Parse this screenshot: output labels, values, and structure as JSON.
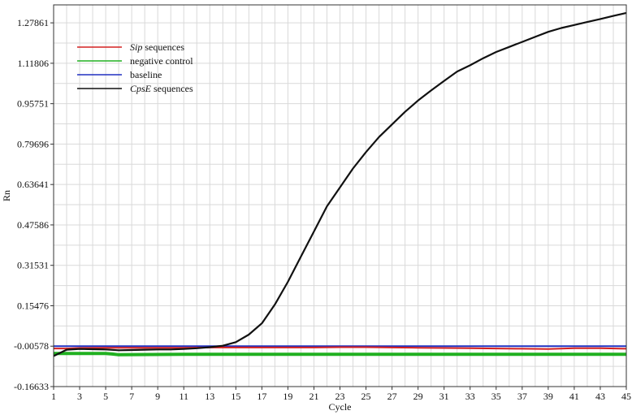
{
  "chart_data": {
    "type": "line",
    "title": "",
    "xlabel": "Cycle",
    "ylabel": "Rn",
    "xlim": [
      1,
      45
    ],
    "ylim": [
      -0.16633,
      1.35
    ],
    "x_ticks": [
      "1",
      "3",
      "5",
      "7",
      "9",
      "11",
      "13",
      "15",
      "17",
      "19",
      "21",
      "23",
      "25",
      "27",
      "29",
      "31",
      "33",
      "35",
      "37",
      "39",
      "41",
      "43",
      "45"
    ],
    "y_ticks": [
      "-0.16633",
      "-0.00578",
      "0.15476",
      "0.31531",
      "0.47586",
      "0.63641",
      "0.79696",
      "0.95751",
      "1.11806",
      "1.27861"
    ],
    "y_tick_values": [
      -0.16633,
      -0.00578,
      0.15476,
      0.31531,
      0.47586,
      0.63641,
      0.79696,
      0.95751,
      1.11806,
      1.27861
    ],
    "grid": true,
    "legend_position": "top-left",
    "series": [
      {
        "name": "Sip",
        "name_suffix": " sequences",
        "color": "#d42020",
        "width": 2,
        "x": [
          1,
          2,
          3,
          5,
          7,
          9,
          11,
          13,
          15,
          17,
          19,
          21,
          23,
          25,
          27,
          29,
          31,
          33,
          35,
          37,
          39,
          41,
          43,
          45
        ],
        "y": [
          -0.015,
          -0.015,
          -0.013,
          -0.012,
          -0.012,
          -0.012,
          -0.012,
          -0.011,
          -0.011,
          -0.011,
          -0.011,
          -0.011,
          -0.01,
          -0.01,
          -0.011,
          -0.012,
          -0.013,
          -0.014,
          -0.015,
          -0.016,
          -0.017,
          -0.014,
          -0.014,
          -0.016
        ]
      },
      {
        "name": "negative control",
        "name_suffix": "",
        "color": "#20b020",
        "width": 4,
        "x": [
          1,
          5,
          5.5,
          6,
          11,
          15,
          20,
          25,
          30,
          35,
          40,
          45
        ],
        "y": [
          -0.035,
          -0.035,
          -0.037,
          -0.04,
          -0.038,
          -0.038,
          -0.038,
          -0.038,
          -0.038,
          -0.038,
          -0.038,
          -0.038
        ]
      },
      {
        "name": "baseline",
        "name_suffix": "",
        "color": "#2030c0",
        "width": 2,
        "x": [
          1,
          45
        ],
        "y": [
          -0.00578,
          -0.00578
        ]
      },
      {
        "name": "CpsE",
        "name_suffix": " sequences",
        "color": "#111111",
        "width": 2.2,
        "x": [
          1,
          2,
          3,
          4,
          5,
          6,
          7,
          8,
          9,
          10,
          11,
          12,
          13,
          14,
          15,
          16,
          17,
          18,
          19,
          20,
          21,
          22,
          23,
          24,
          25,
          26,
          27,
          28,
          29,
          30,
          31,
          32,
          33,
          34,
          35,
          36,
          37,
          38,
          39,
          40,
          41,
          42,
          43,
          44,
          45
        ],
        "y": [
          -0.045,
          -0.02,
          -0.017,
          -0.018,
          -0.019,
          -0.022,
          -0.021,
          -0.02,
          -0.019,
          -0.019,
          -0.017,
          -0.014,
          -0.01,
          -0.004,
          0.01,
          0.04,
          0.085,
          0.16,
          0.25,
          0.35,
          0.45,
          0.55,
          0.625,
          0.7,
          0.765,
          0.825,
          0.875,
          0.925,
          0.97,
          1.01,
          1.048,
          1.085,
          1.11,
          1.138,
          1.163,
          1.183,
          1.203,
          1.223,
          1.243,
          1.258,
          1.27,
          1.282,
          1.294,
          1.306,
          1.318
        ]
      }
    ]
  }
}
